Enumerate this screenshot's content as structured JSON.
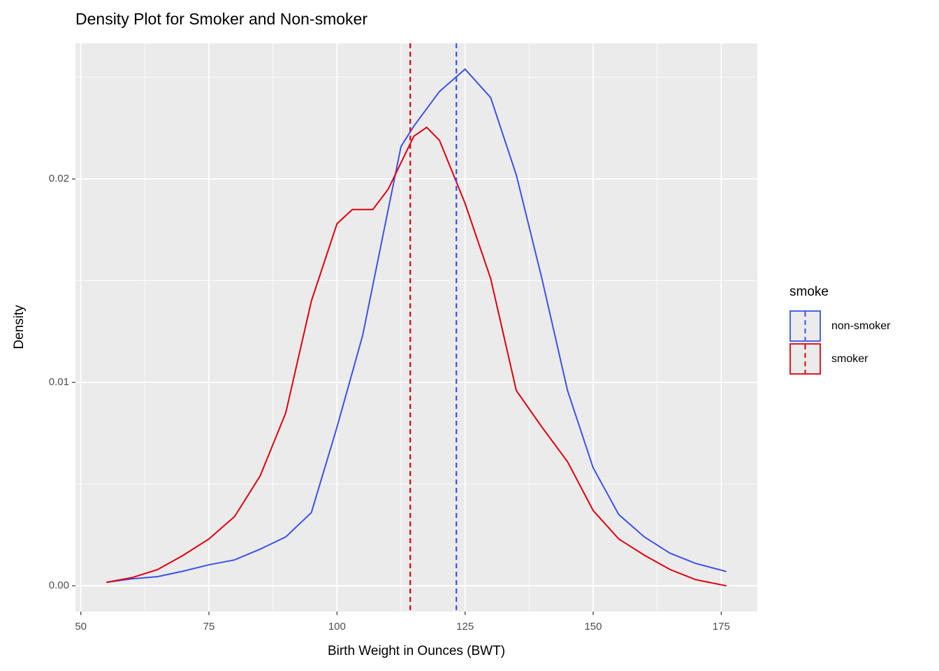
{
  "chart_data": {
    "type": "density",
    "title": "Density Plot for Smoker and Non-smoker",
    "x_label": "Birth Weight in Ounces (BWT)",
    "y_label": "Density",
    "legend_title": "smoke",
    "legend_position": "right",
    "grid": true,
    "xlim": [
      48.95,
      182.05
    ],
    "ylim": [
      -0.00127,
      0.02667
    ],
    "xticks": [
      50,
      75,
      100,
      125,
      150,
      175
    ],
    "yticks": [
      {
        "value": 0,
        "label": "0.00"
      },
      {
        "value": 0.01,
        "label": "0.01"
      },
      {
        "value": 0.02,
        "label": "0.02"
      }
    ],
    "x_minor_grid": [
      62.5,
      87.5,
      112.5,
      137.5,
      162.5
    ],
    "y_minor_grid": [
      0.005,
      0.015,
      0.025
    ],
    "series": [
      {
        "name": "non-smoker",
        "color": "#3b52e8",
        "mean": 123.3,
        "x": [
          55,
          60,
          65,
          70,
          75,
          80,
          85,
          90,
          95,
          100,
          105,
          110,
          112.5,
          115,
          120,
          125,
          130,
          135,
          140,
          145,
          150,
          155,
          160,
          165,
          170,
          176
        ],
        "values": [
          0.00017,
          0.00034,
          0.00045,
          0.00072,
          0.00103,
          0.00127,
          0.0018,
          0.0024,
          0.0036,
          0.0078,
          0.0123,
          0.0185,
          0.0216,
          0.0226,
          0.0243,
          0.0254,
          0.024,
          0.0202,
          0.0151,
          0.0096,
          0.0058,
          0.0035,
          0.0024,
          0.0016,
          0.0011,
          0.0007
        ]
      },
      {
        "name": "smoker",
        "color": "#e0000f",
        "mean": 114.3,
        "x": [
          55,
          60,
          65,
          70,
          75,
          80,
          85,
          90,
          95,
          100,
          103,
          107,
          110,
          115,
          117.5,
          120,
          125,
          130,
          135,
          140,
          145,
          150,
          155,
          160,
          165,
          170,
          176
        ],
        "values": [
          0.00017,
          0.0004,
          0.0008,
          0.0015,
          0.0023,
          0.0034,
          0.0054,
          0.0085,
          0.014,
          0.0178,
          0.0185,
          0.0185,
          0.0195,
          0.0221,
          0.02254,
          0.0219,
          0.0188,
          0.0151,
          0.0096,
          0.0078,
          0.0061,
          0.0037,
          0.0023,
          0.0015,
          0.0008,
          0.0003,
          0
        ]
      }
    ]
  }
}
